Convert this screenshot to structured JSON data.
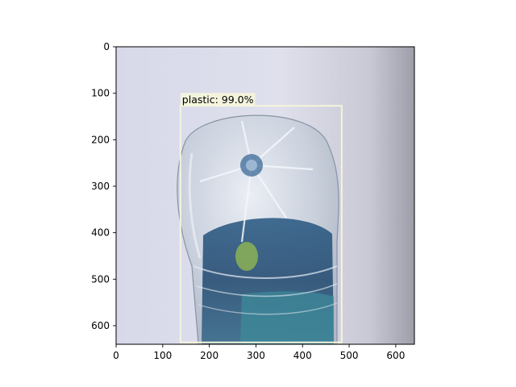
{
  "figure": {
    "background": "#ffffff",
    "image_extent": {
      "x": [
        0,
        640
      ],
      "y": [
        640,
        0
      ]
    }
  },
  "axes": {
    "x_ticks": [
      0,
      100,
      200,
      300,
      400,
      500,
      600
    ],
    "y_ticks": [
      0,
      100,
      200,
      300,
      400,
      500,
      600
    ]
  },
  "image": {
    "subject": "plastic-bottle-photo"
  },
  "detection": {
    "label": "plastic: 99.0%",
    "class": "plastic",
    "confidence_percent": 99.0,
    "box": {
      "x_min": 138,
      "y_min": 127,
      "x_max": 484,
      "y_max": 636
    },
    "box_color": "#f5f5dc"
  }
}
